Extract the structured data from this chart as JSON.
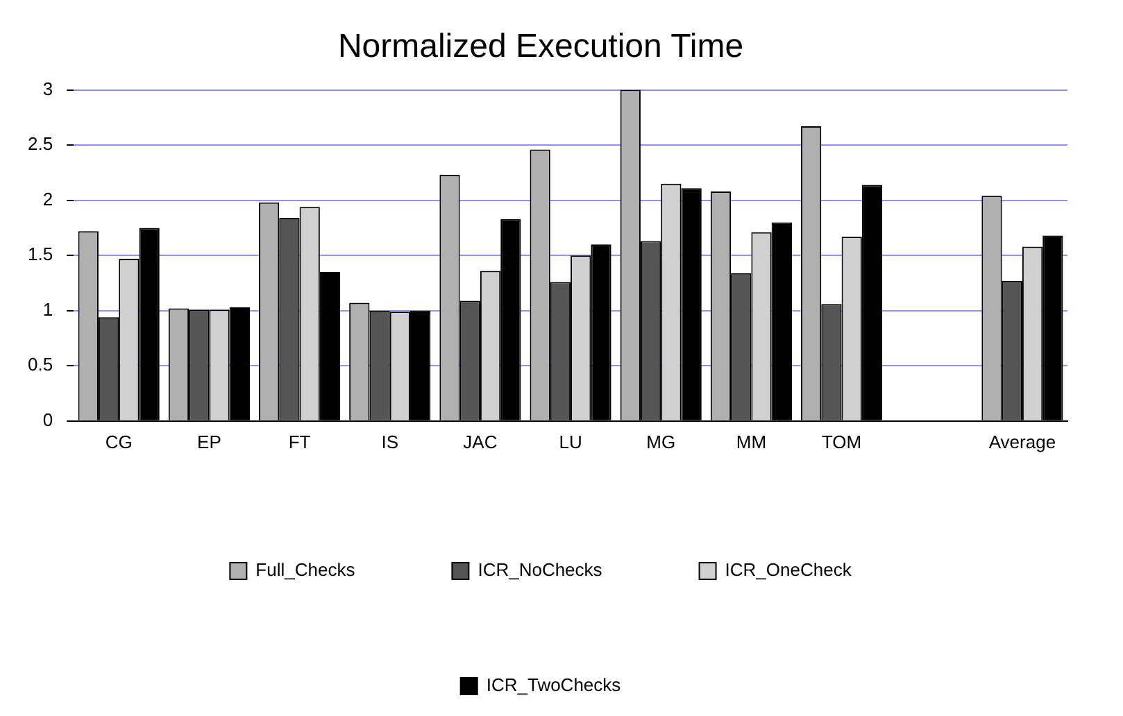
{
  "chart_data": {
    "type": "bar",
    "title": "Normalized Execution Time",
    "categories": [
      "CG",
      "EP",
      "FT",
      "IS",
      "JAC",
      "LU",
      "MG",
      "MM",
      "TOM",
      null,
      "Average"
    ],
    "series": [
      {
        "name": "Full_Checks",
        "color": "#b0b0b0",
        "values": [
          1.72,
          1.02,
          1.98,
          1.07,
          2.23,
          2.46,
          3.0,
          2.08,
          2.67,
          null,
          2.04
        ]
      },
      {
        "name": "ICR_NoChecks",
        "color": "#555555",
        "values": [
          0.94,
          1.01,
          1.84,
          1.0,
          1.09,
          1.26,
          1.63,
          1.34,
          1.06,
          null,
          1.27
        ]
      },
      {
        "name": "ICR_OneCheck",
        "color": "#d0d0d0",
        "values": [
          1.47,
          1.01,
          1.94,
          0.99,
          1.36,
          1.5,
          2.15,
          1.71,
          1.67,
          null,
          1.58
        ]
      },
      {
        "name": "ICR_TwoChecks",
        "color": "#000000",
        "values": [
          1.75,
          1.03,
          1.35,
          1.0,
          1.83,
          1.6,
          2.11,
          1.8,
          2.14,
          null,
          1.68
        ]
      }
    ],
    "ylim": [
      0,
      3
    ],
    "yticks": [
      0,
      0.5,
      1,
      1.5,
      2,
      2.5,
      3
    ],
    "grid": "y",
    "legend": "bottom"
  }
}
